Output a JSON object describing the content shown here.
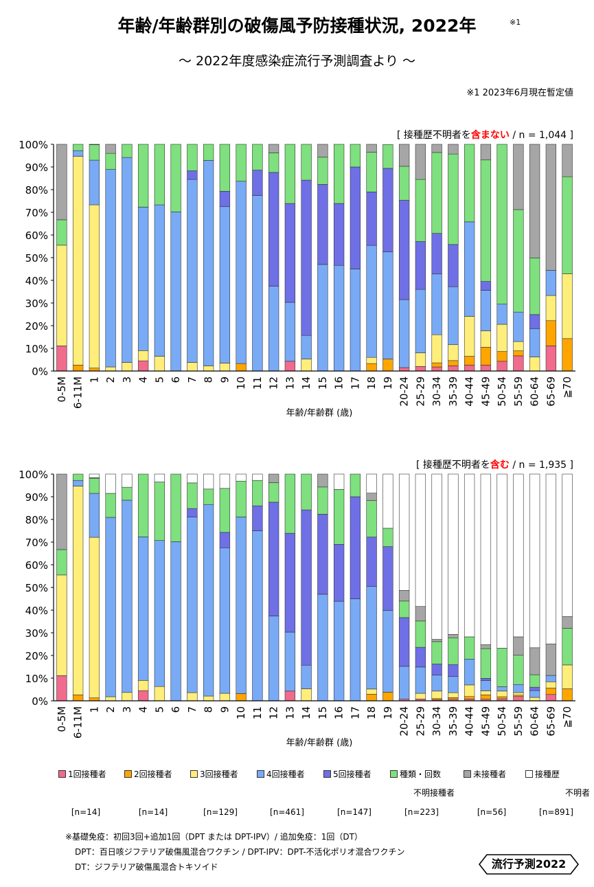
{
  "title": "年齢/年齢群別の破傷風予防接種状況, 2022年",
  "title_sup": "※1",
  "subtitle": "～ 2022年度感染症流行予測調査より ～",
  "note1": "※1  2023年6月現在暫定値",
  "colors": {
    "dose1": "#f06b8c",
    "dose2": "#ffa500",
    "dose3": "#ffee7a",
    "dose4": "#79aaf5",
    "dose5": "#6f6fe6",
    "unknown_type": "#7ee07e",
    "unvaccinated": "#a6a6a6",
    "history_unknown": "#ffffff",
    "accent_red": "#ff0000"
  },
  "chart_data": [
    {
      "type": "bar",
      "stacked": true,
      "header_prefix": "[ 接種歴不明者を",
      "header_emph": "含まない",
      "header_suffix": " / n = 1,044 ]",
      "xlabel": "年齢/年齢群 (歳)",
      "ylim": [
        0,
        100
      ],
      "yticks": [
        "0%",
        "10%",
        "20%",
        "30%",
        "40%",
        "50%",
        "60%",
        "70%",
        "80%",
        "90%",
        "100%"
      ],
      "categories": [
        "0-5M",
        "6-11M",
        "1",
        "2",
        "3",
        "4",
        "5",
        "6",
        "7",
        "8",
        "9",
        "10",
        "11",
        "12",
        "13",
        "14",
        "15",
        "16",
        "17",
        "18",
        "19",
        "20-24",
        "25-29",
        "30-34",
        "35-39",
        "40-44",
        "45-49",
        "50-54",
        "55-59",
        "60-64",
        "65-69",
        "≧70"
      ],
      "series": [
        {
          "name": "1回接種者",
          "values": [
            11.1,
            0,
            0,
            0,
            0,
            4.5,
            0,
            0,
            0,
            0,
            0,
            0,
            0,
            0,
            4.3,
            0,
            0,
            0,
            0,
            0,
            0,
            1.5,
            2.0,
            1.8,
            2.3,
            2.6,
            2.6,
            4.3,
            6.7,
            0,
            11.1,
            0
          ]
        },
        {
          "name": "2回接種者",
          "values": [
            0,
            2.6,
            1.3,
            0,
            0,
            0,
            0,
            0,
            0,
            0,
            0,
            3.3,
            0,
            0,
            0,
            0,
            0,
            0,
            0,
            3.3,
            5.3,
            0,
            0,
            1.8,
            2.3,
            3.9,
            7.9,
            4.3,
            2.2,
            0,
            11.1,
            14.3
          ]
        },
        {
          "name": "3回接種者",
          "values": [
            44.4,
            92.1,
            72.0,
            1.8,
            3.8,
            4.5,
            6.5,
            0,
            3.8,
            2.3,
            3.5,
            0,
            0,
            0,
            0,
            5.3,
            0,
            0,
            0,
            2.7,
            0,
            0,
            6.0,
            12.4,
            7.0,
            17.6,
            7.2,
            12.0,
            4.1,
            6.2,
            11.1,
            28.6
          ]
        },
        {
          "name": "4回接種者",
          "values": [
            0,
            2.5,
            19.7,
            87.1,
            90.4,
            63.3,
            66.8,
            70.2,
            80.7,
            90.6,
            69.0,
            80.4,
            77.4,
            37.4,
            26.0,
            10.4,
            47.0,
            46.6,
            45.0,
            49.4,
            47.3,
            30.0,
            28.0,
            26.8,
            25.6,
            41.7,
            17.9,
            8.9,
            13.0,
            12.5,
            11.1,
            0
          ]
        },
        {
          "name": "5回接種者",
          "values": [
            0,
            0,
            0,
            0,
            0,
            0,
            0,
            0,
            3.8,
            0,
            6.8,
            0,
            11.2,
            50.2,
            43.6,
            68.5,
            35.3,
            27.3,
            45.0,
            23.6,
            36.8,
            43.8,
            21.1,
            17.9,
            18.6,
            0,
            3.9,
            0,
            0,
            6.2,
            0,
            0
          ]
        },
        {
          "name": "種類・回数不明接種者",
          "values": [
            11.2,
            2.8,
            6.8,
            7.1,
            5.8,
            27.7,
            26.7,
            29.8,
            11.7,
            7.1,
            20.7,
            16.3,
            11.4,
            8.6,
            26.1,
            15.8,
            12.0,
            26.1,
            10.0,
            17.5,
            10.5,
            15.0,
            27.4,
            35.7,
            39.9,
            34.2,
            53.6,
            70.5,
            45.2,
            25.0,
            0,
            42.8
          ]
        },
        {
          "name": "未接種者",
          "values": [
            33.3,
            0,
            0.2,
            4.0,
            0,
            0,
            0,
            0,
            0,
            0,
            0,
            0,
            0,
            3.8,
            0,
            0,
            5.7,
            0,
            0,
            3.5,
            0,
            9.7,
            15.5,
            3.6,
            4.3,
            0,
            6.9,
            0,
            28.8,
            50.1,
            55.6,
            14.3
          ]
        }
      ]
    },
    {
      "type": "bar",
      "stacked": true,
      "header_prefix": "[ 接種歴不明者を",
      "header_emph": "含む",
      "header_suffix": " / n = 1,935 ]",
      "xlabel": "年齢/年齢群 (歳)",
      "ylim": [
        0,
        100
      ],
      "yticks": [
        "0%",
        "10%",
        "20%",
        "30%",
        "40%",
        "50%",
        "60%",
        "70%",
        "80%",
        "90%",
        "100%"
      ],
      "categories": [
        "0-5M",
        "6-11M",
        "1",
        "2",
        "3",
        "4",
        "5",
        "6",
        "7",
        "8",
        "9",
        "10",
        "11",
        "12",
        "13",
        "14",
        "15",
        "16",
        "17",
        "18",
        "19",
        "20-24",
        "25-29",
        "30-34",
        "35-39",
        "40-44",
        "45-49",
        "50-54",
        "55-59",
        "60-64",
        "65-69",
        "≧70"
      ],
      "series": [
        {
          "name": "1回接種者",
          "values": [
            11.1,
            0,
            0,
            0,
            0,
            4.5,
            0,
            0,
            0,
            0,
            0,
            0,
            0,
            0,
            4.3,
            0,
            0,
            0,
            0,
            0,
            0,
            0.7,
            0.8,
            0.5,
            0.7,
            0.8,
            0.7,
            0.9,
            1.9,
            0,
            2.8,
            0
          ]
        },
        {
          "name": "2回接種者",
          "values": [
            0,
            2.6,
            1.3,
            0,
            0,
            0,
            0,
            0,
            0,
            0,
            0,
            3.2,
            0,
            0,
            0,
            0,
            0,
            0,
            0,
            2.9,
            3.8,
            0,
            0,
            0.5,
            0.7,
            1.1,
            1.9,
            0.9,
            0.6,
            0,
            2.8,
            5.3
          ]
        },
        {
          "name": "3回接種者",
          "values": [
            44.4,
            92.1,
            70.8,
            1.8,
            3.7,
            4.5,
            6.3,
            0,
            3.6,
            2.1,
            3.3,
            0,
            0,
            0,
            0,
            5.3,
            0,
            0,
            0,
            2.3,
            0,
            0,
            2.5,
            3.3,
            2.2,
            5.1,
            1.8,
            2.5,
            1.1,
            1.5,
            2.8,
            10.5
          ]
        },
        {
          "name": "4回接種者",
          "values": [
            0,
            2.5,
            19.4,
            79.1,
            84.8,
            63.3,
            64.4,
            70.2,
            77.4,
            84.5,
            64.2,
            77.9,
            75.0,
            37.4,
            26.0,
            10.4,
            47.0,
            43.9,
            45.0,
            45.3,
            36.1,
            14.5,
            11.6,
            7.1,
            7.1,
            11.4,
            4.5,
            1.9,
            3.6,
            3.0,
            2.8,
            0
          ]
        },
        {
          "name": "5回接種者",
          "values": [
            0,
            0,
            0,
            0,
            0,
            0,
            0,
            0,
            3.8,
            0,
            6.8,
            0,
            11.0,
            50.2,
            43.6,
            68.5,
            35.3,
            25.1,
            45.0,
            21.7,
            28.1,
            21.5,
            8.7,
            4.8,
            5.3,
            0,
            1.0,
            0,
            0,
            1.5,
            0,
            0
          ]
        },
        {
          "name": "種類・回数不明接種者",
          "values": [
            11.2,
            2.8,
            6.7,
            10.6,
            5.7,
            27.7,
            25.8,
            29.8,
            11.3,
            6.8,
            19.4,
            15.8,
            11.2,
            8.6,
            26.1,
            15.8,
            12.0,
            24.2,
            10.0,
            16.1,
            8.1,
            7.3,
            11.6,
            9.9,
            11.8,
            9.8,
            13.1,
            17.0,
            12.9,
            5.5,
            0,
            16.2
          ]
        },
        {
          "name": "未接種者",
          "values": [
            33.3,
            0,
            0.2,
            0,
            0,
            0,
            0,
            0,
            0,
            0,
            0,
            0,
            0,
            3.8,
            0,
            0,
            5.7,
            0,
            0,
            3.3,
            0,
            4.7,
            6.4,
            1.0,
            1.5,
            0,
            1.8,
            0,
            8.1,
            11.9,
            13.9,
            5.2
          ]
        },
        {
          "name": "接種歴不明者",
          "values": [
            0,
            0,
            1.6,
            8.5,
            5.8,
            0,
            3.5,
            0,
            3.9,
            6.6,
            6.3,
            3.1,
            2.8,
            0,
            0,
            0,
            0,
            6.8,
            0,
            8.4,
            23.9,
            51.3,
            58.4,
            72.9,
            70.7,
            71.8,
            75.2,
            76.8,
            71.8,
            76.6,
            74.9,
            62.8
          ]
        }
      ]
    }
  ],
  "legend": {
    "items": [
      {
        "label": "1回接種者",
        "label2": "",
        "n": "[n=14]"
      },
      {
        "label": "2回接種者",
        "label2": "",
        "n": "[n=14]"
      },
      {
        "label": "3回接種者",
        "label2": "",
        "n": "[n=129]"
      },
      {
        "label": "4回接種者",
        "label2": "",
        "n": "[n=461]"
      },
      {
        "label": "5回接種者",
        "label2": "",
        "n": "[n=147]"
      },
      {
        "label": "種類・回数",
        "label2": "不明接種者",
        "n": "[n=223]"
      },
      {
        "label": "未接種者",
        "label2": "",
        "n": "[n=56]"
      },
      {
        "label": "接種歴",
        "label2": "不明者",
        "n": "[n=891]"
      }
    ]
  },
  "footnotes": {
    "line1": "※基礎免疫：初回3回+追加1回（DPT または DPT-IPV）/ 追加免疫：1回（DT）",
    "line2": "DPT：百日咳ジフテリア破傷風混合ワクチン / DPT-IPV：DPT-不活化ポリオ混合ワクチン",
    "line3": "DT：ジフテリア破傷風混合トキソイド"
  },
  "badge": "流行予測2022"
}
